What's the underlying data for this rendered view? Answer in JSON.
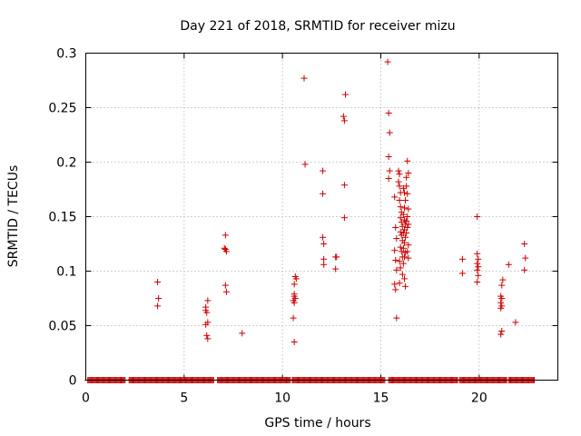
{
  "chart_data": {
    "type": "scatter",
    "title": "Day 221 of 2018, SRMTID for receiver mizu",
    "xlabel": "GPS time / hours",
    "ylabel": "SRMTID / TECUs",
    "xlim": [
      0,
      24
    ],
    "ylim": [
      0,
      0.3
    ],
    "xticks": [
      0,
      5,
      10,
      15,
      20
    ],
    "yticks": [
      0,
      0.05,
      0.1,
      0.15,
      0.2,
      0.25,
      0.3
    ],
    "xtick_labels": [
      "0",
      "5",
      "10",
      "15",
      "20"
    ],
    "ytick_labels": [
      "0",
      "0.05",
      "0.1",
      "0.15",
      "0.2",
      "0.25",
      "0.3"
    ],
    "grid": true,
    "marker": "+",
    "color": "#cc0000",
    "zero_ranges": [
      [
        0.1,
        2.0
      ],
      [
        2.2,
        6.5
      ],
      [
        6.7,
        10.4
      ],
      [
        10.5,
        15.2
      ],
      [
        15.4,
        18.9
      ],
      [
        19.0,
        21.4
      ],
      [
        21.5,
        22.8
      ]
    ],
    "zero_step": 0.05,
    "points": [
      [
        3.65,
        0.09
      ],
      [
        3.7,
        0.075
      ],
      [
        3.65,
        0.068
      ],
      [
        6.1,
        0.067
      ],
      [
        6.2,
        0.073
      ],
      [
        6.15,
        0.062
      ],
      [
        6.1,
        0.064
      ],
      [
        6.2,
        0.053
      ],
      [
        6.1,
        0.051
      ],
      [
        6.15,
        0.041
      ],
      [
        6.2,
        0.038
      ],
      [
        7.1,
        0.133
      ],
      [
        7.05,
        0.121
      ],
      [
        7.15,
        0.118
      ],
      [
        7.1,
        0.12
      ],
      [
        7.1,
        0.087
      ],
      [
        7.15,
        0.081
      ],
      [
        7.95,
        0.043
      ],
      [
        10.55,
        0.057
      ],
      [
        10.6,
        0.077
      ],
      [
        10.65,
        0.075
      ],
      [
        10.6,
        0.079
      ],
      [
        10.55,
        0.073
      ],
      [
        10.6,
        0.071
      ],
      [
        10.7,
        0.093
      ],
      [
        10.65,
        0.095
      ],
      [
        10.6,
        0.088
      ],
      [
        10.6,
        0.035
      ],
      [
        11.1,
        0.277
      ],
      [
        11.15,
        0.198
      ],
      [
        12.05,
        0.192
      ],
      [
        12.05,
        0.171
      ],
      [
        12.05,
        0.131
      ],
      [
        12.1,
        0.125
      ],
      [
        12.1,
        0.111
      ],
      [
        12.1,
        0.106
      ],
      [
        12.7,
        0.113
      ],
      [
        12.75,
        0.113
      ],
      [
        12.7,
        0.102
      ],
      [
        13.2,
        0.262
      ],
      [
        13.1,
        0.242
      ],
      [
        13.15,
        0.238
      ],
      [
        13.15,
        0.179
      ],
      [
        13.15,
        0.149
      ],
      [
        15.35,
        0.292
      ],
      [
        15.4,
        0.245
      ],
      [
        15.45,
        0.227
      ],
      [
        15.4,
        0.205
      ],
      [
        15.45,
        0.192
      ],
      [
        15.4,
        0.185
      ],
      [
        15.7,
        0.168
      ],
      [
        15.75,
        0.14
      ],
      [
        15.8,
        0.13
      ],
      [
        15.7,
        0.119
      ],
      [
        15.75,
        0.11
      ],
      [
        15.8,
        0.101
      ],
      [
        15.7,
        0.088
      ],
      [
        15.75,
        0.083
      ],
      [
        15.8,
        0.057
      ],
      [
        15.9,
        0.192
      ],
      [
        15.95,
        0.189
      ],
      [
        15.9,
        0.182
      ],
      [
        15.95,
        0.178
      ],
      [
        16.0,
        0.172
      ],
      [
        15.95,
        0.165
      ],
      [
        16.0,
        0.159
      ],
      [
        16.05,
        0.154
      ],
      [
        16.0,
        0.149
      ],
      [
        16.05,
        0.145
      ],
      [
        16.1,
        0.141
      ],
      [
        16.0,
        0.136
      ],
      [
        16.05,
        0.133
      ],
      [
        16.1,
        0.128
      ],
      [
        16.0,
        0.122
      ],
      [
        16.05,
        0.118
      ],
      [
        16.1,
        0.113
      ],
      [
        15.95,
        0.109
      ],
      [
        16.0,
        0.103
      ],
      [
        16.1,
        0.097
      ],
      [
        15.95,
        0.089
      ],
      [
        16.15,
        0.176
      ],
      [
        16.2,
        0.172
      ],
      [
        16.25,
        0.165
      ],
      [
        16.2,
        0.158
      ],
      [
        16.15,
        0.152
      ],
      [
        16.2,
        0.147
      ],
      [
        16.25,
        0.143
      ],
      [
        16.2,
        0.138
      ],
      [
        16.15,
        0.135
      ],
      [
        16.25,
        0.131
      ],
      [
        16.2,
        0.126
      ],
      [
        16.15,
        0.121
      ],
      [
        16.25,
        0.117
      ],
      [
        16.2,
        0.113
      ],
      [
        16.15,
        0.107
      ],
      [
        16.2,
        0.093
      ],
      [
        16.25,
        0.086
      ],
      [
        16.3,
        0.178
      ],
      [
        16.35,
        0.171
      ],
      [
        16.4,
        0.157
      ],
      [
        16.35,
        0.15
      ],
      [
        16.3,
        0.146
      ],
      [
        16.4,
        0.143
      ],
      [
        16.35,
        0.14
      ],
      [
        16.3,
        0.135
      ],
      [
        16.4,
        0.124
      ],
      [
        16.35,
        0.118
      ],
      [
        16.4,
        0.112
      ],
      [
        16.35,
        0.201
      ],
      [
        16.4,
        0.19
      ],
      [
        16.3,
        0.186
      ],
      [
        19.15,
        0.111
      ],
      [
        19.15,
        0.098
      ],
      [
        19.9,
        0.15
      ],
      [
        19.9,
        0.116
      ],
      [
        19.95,
        0.111
      ],
      [
        19.9,
        0.107
      ],
      [
        19.95,
        0.104
      ],
      [
        19.9,
        0.101
      ],
      [
        19.95,
        0.096
      ],
      [
        19.9,
        0.09
      ],
      [
        21.1,
        0.077
      ],
      [
        21.15,
        0.075
      ],
      [
        21.1,
        0.071
      ],
      [
        21.15,
        0.068
      ],
      [
        21.1,
        0.066
      ],
      [
        21.15,
        0.045
      ],
      [
        21.1,
        0.042
      ],
      [
        21.2,
        0.092
      ],
      [
        21.15,
        0.087
      ],
      [
        21.5,
        0.106
      ],
      [
        21.85,
        0.053
      ],
      [
        22.3,
        0.125
      ],
      [
        22.35,
        0.112
      ],
      [
        22.3,
        0.101
      ]
    ]
  }
}
